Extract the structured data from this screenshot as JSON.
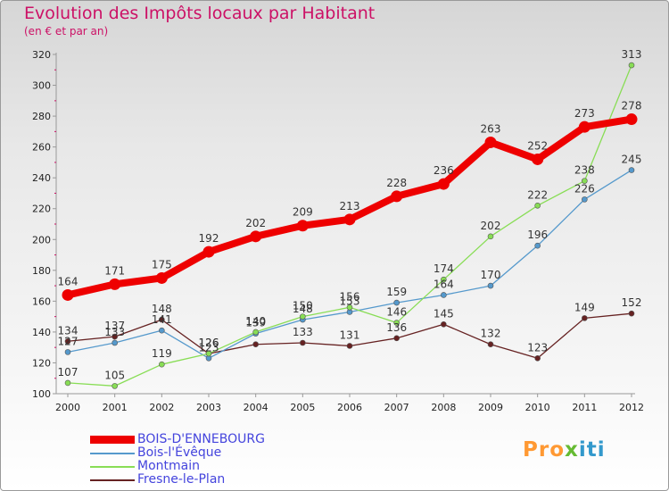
{
  "chart_data": {
    "type": "line",
    "title": "Evolution des Impôts locaux par Habitant",
    "subtitle": "(en € et par an)",
    "xlabel": "",
    "ylabel": "",
    "ylim": [
      100,
      320
    ],
    "yticks": [
      100,
      120,
      140,
      160,
      180,
      200,
      220,
      240,
      260,
      280,
      300,
      320
    ],
    "categories": [
      "2000",
      "2001",
      "2002",
      "2003",
      "2004",
      "2005",
      "2006",
      "2007",
      "2008",
      "2009",
      "2010",
      "2011",
      "2012"
    ],
    "grid": false,
    "legend": "bottom-left",
    "series": [
      {
        "name": "BOIS-D'ENNEBOURG",
        "color": "#ee0000",
        "values": [
          164,
          171,
          175,
          192,
          202,
          209,
          213,
          228,
          236,
          263,
          252,
          273,
          278
        ],
        "labels": [
          "164",
          "171",
          "175",
          "192",
          "202",
          "209",
          "213",
          "228",
          "236",
          "263",
          "252",
          "273",
          "278"
        ]
      },
      {
        "name": "Bois-l'Évêque",
        "color": "#5599cc",
        "values": [
          127,
          133,
          141,
          123,
          139,
          148,
          153,
          159,
          164,
          170,
          196,
          226,
          245
        ],
        "labels": [
          "127",
          "133",
          "141",
          "123",
          "139",
          "148",
          "153",
          "159",
          "164",
          "170",
          "196",
          "226",
          "245"
        ]
      },
      {
        "name": "Montmain",
        "color": "#88dd55",
        "values": [
          107,
          105,
          119,
          126,
          140,
          150,
          156,
          146,
          174,
          202,
          222,
          238,
          313
        ],
        "labels": [
          "107",
          "105",
          "119",
          "126",
          "140",
          "150",
          "156",
          "146",
          "174",
          "202",
          "222",
          "238",
          "313"
        ]
      },
      {
        "name": "Fresne-le-Plan",
        "color": "#662222",
        "values": [
          134,
          137,
          148,
          126,
          132,
          133,
          131,
          136,
          145,
          132,
          123,
          149,
          152
        ],
        "labels": [
          "134",
          "137",
          "148",
          "126",
          "",
          "133",
          "131",
          "136",
          "145",
          "132",
          "123",
          "149",
          "152"
        ]
      }
    ]
  },
  "brand": {
    "part1": "Pro",
    "part2": "x",
    "part3": "iti"
  }
}
